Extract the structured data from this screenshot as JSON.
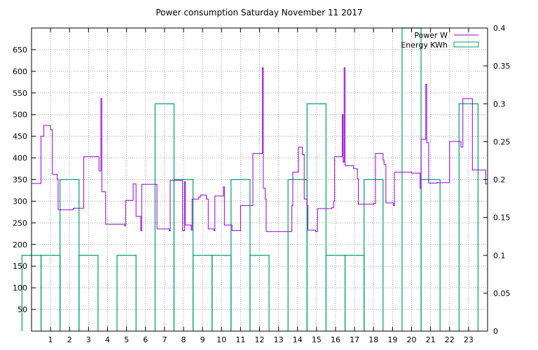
{
  "chart_data": {
    "type": "line",
    "title": "Power consumption Saturday November 11 2017",
    "x_ticks": [
      "1",
      "2",
      "3",
      "4",
      "5",
      "6",
      "7",
      "8",
      "9",
      "10",
      "11",
      "12",
      "13",
      "14",
      "15",
      "16",
      "17",
      "18",
      "19",
      "20",
      "21",
      "22",
      "23"
    ],
    "xlim": [
      0,
      24
    ],
    "y_left": {
      "lim": [
        0,
        700
      ],
      "ticks": [
        50,
        100,
        150,
        200,
        250,
        300,
        350,
        400,
        450,
        500,
        550,
        600,
        650
      ]
    },
    "y_right": {
      "lim": [
        0,
        0.4
      ],
      "ticks": [
        "0",
        "0.05",
        "0.1",
        "0.15",
        "0.2",
        "0.25",
        "0.3",
        "0.35",
        "0.4"
      ],
      "tick_values": [
        0,
        0.05,
        0.1,
        0.15,
        0.2,
        0.25,
        0.3,
        0.35,
        0.4
      ]
    },
    "grid": true,
    "legend": "top-right",
    "series": [
      {
        "name": "Power W",
        "axis": "left",
        "style": "step",
        "color": "#9400d3",
        "points": [
          [
            0,
            341
          ],
          [
            0.5,
            341
          ],
          [
            0.5,
            450
          ],
          [
            0.65,
            450
          ],
          [
            0.65,
            475
          ],
          [
            1.0,
            475
          ],
          [
            1.0,
            465
          ],
          [
            1.1,
            465
          ],
          [
            1.1,
            362
          ],
          [
            1.35,
            362
          ],
          [
            1.35,
            350
          ],
          [
            1.4,
            350
          ],
          [
            1.4,
            280
          ],
          [
            2.2,
            280
          ],
          [
            2.2,
            284
          ],
          [
            2.75,
            284
          ],
          [
            2.75,
            403
          ],
          [
            3.55,
            403
          ],
          [
            3.55,
            370
          ],
          [
            3.65,
            370
          ],
          [
            3.65,
            537
          ],
          [
            3.7,
            537
          ],
          [
            3.7,
            322
          ],
          [
            3.9,
            322
          ],
          [
            3.9,
            247
          ],
          [
            4.9,
            247
          ],
          [
            4.9,
            243
          ],
          [
            4.95,
            243
          ],
          [
            4.95,
            302
          ],
          [
            5.35,
            302
          ],
          [
            5.35,
            340
          ],
          [
            5.5,
            340
          ],
          [
            5.5,
            265
          ],
          [
            5.75,
            265
          ],
          [
            5.75,
            232
          ],
          [
            5.8,
            232
          ],
          [
            5.8,
            339
          ],
          [
            6.6,
            339
          ],
          [
            6.6,
            236
          ],
          [
            7.25,
            236
          ],
          [
            7.25,
            232
          ],
          [
            7.3,
            232
          ],
          [
            7.3,
            348
          ],
          [
            7.95,
            348
          ],
          [
            7.95,
            232
          ],
          [
            8.05,
            232
          ],
          [
            8.05,
            345
          ],
          [
            8.1,
            345
          ],
          [
            8.1,
            245
          ],
          [
            8.4,
            245
          ],
          [
            8.4,
            233
          ],
          [
            8.45,
            233
          ],
          [
            8.45,
            305
          ],
          [
            8.8,
            305
          ],
          [
            8.8,
            310
          ],
          [
            8.9,
            310
          ],
          [
            8.9,
            314
          ],
          [
            9.2,
            314
          ],
          [
            9.2,
            305
          ],
          [
            9.3,
            305
          ],
          [
            9.3,
            236
          ],
          [
            9.6,
            236
          ],
          [
            9.6,
            232
          ],
          [
            9.65,
            232
          ],
          [
            9.65,
            312
          ],
          [
            10.1,
            312
          ],
          [
            10.1,
            333
          ],
          [
            10.15,
            333
          ],
          [
            10.15,
            245
          ],
          [
            10.55,
            245
          ],
          [
            10.55,
            232
          ],
          [
            11.0,
            232
          ],
          [
            11.0,
            290
          ],
          [
            11.65,
            290
          ],
          [
            11.65,
            410
          ],
          [
            12.15,
            410
          ],
          [
            12.15,
            608
          ],
          [
            12.2,
            608
          ],
          [
            12.2,
            330
          ],
          [
            12.3,
            330
          ],
          [
            12.3,
            305
          ],
          [
            12.35,
            305
          ],
          [
            12.35,
            230
          ],
          [
            13.7,
            230
          ],
          [
            13.7,
            290
          ],
          [
            13.75,
            290
          ],
          [
            13.75,
            367
          ],
          [
            14.05,
            367
          ],
          [
            14.05,
            425
          ],
          [
            14.25,
            425
          ],
          [
            14.25,
            408
          ],
          [
            14.35,
            408
          ],
          [
            14.35,
            305
          ],
          [
            14.5,
            305
          ],
          [
            14.5,
            290
          ],
          [
            14.55,
            290
          ],
          [
            14.55,
            233
          ],
          [
            14.95,
            233
          ],
          [
            14.95,
            230
          ],
          [
            15.05,
            230
          ],
          [
            15.05,
            283
          ],
          [
            15.8,
            283
          ],
          [
            15.8,
            285
          ],
          [
            15.9,
            285
          ],
          [
            15.9,
            300
          ],
          [
            15.95,
            300
          ],
          [
            15.95,
            403
          ],
          [
            16.35,
            403
          ],
          [
            16.35,
            500
          ],
          [
            16.4,
            500
          ],
          [
            16.4,
            390
          ],
          [
            16.45,
            390
          ],
          [
            16.45,
            608
          ],
          [
            16.5,
            608
          ],
          [
            16.5,
            382
          ],
          [
            16.95,
            382
          ],
          [
            16.95,
            375
          ],
          [
            17.15,
            375
          ],
          [
            17.15,
            352
          ],
          [
            17.2,
            352
          ],
          [
            17.2,
            293
          ],
          [
            18.0,
            293
          ],
          [
            18.0,
            295
          ],
          [
            18.1,
            295
          ],
          [
            18.1,
            410
          ],
          [
            18.5,
            410
          ],
          [
            18.5,
            395
          ],
          [
            18.55,
            395
          ],
          [
            18.55,
            385
          ],
          [
            18.65,
            385
          ],
          [
            18.65,
            296
          ],
          [
            19.05,
            296
          ],
          [
            19.05,
            290
          ],
          [
            19.1,
            290
          ],
          [
            19.1,
            367
          ],
          [
            20.0,
            367
          ],
          [
            20.0,
            365
          ],
          [
            20.45,
            365
          ],
          [
            20.45,
            330
          ],
          [
            20.5,
            330
          ],
          [
            20.5,
            443
          ],
          [
            20.75,
            443
          ],
          [
            20.75,
            570
          ],
          [
            20.8,
            570
          ],
          [
            20.8,
            435
          ],
          [
            20.9,
            435
          ],
          [
            20.9,
            342
          ],
          [
            21.35,
            342
          ],
          [
            21.35,
            343
          ],
          [
            22.0,
            343
          ],
          [
            22.0,
            438
          ],
          [
            22.6,
            438
          ],
          [
            22.6,
            425
          ],
          [
            22.7,
            425
          ],
          [
            22.7,
            537
          ],
          [
            23.2,
            537
          ],
          [
            23.2,
            372
          ],
          [
            23.9,
            372
          ],
          [
            23.9,
            340
          ],
          [
            24,
            340
          ]
        ]
      },
      {
        "name": "Energy KWh",
        "axis": "right",
        "style": "impulse-box",
        "color": "#009e73",
        "bars": [
          [
            0,
            0.1
          ],
          [
            1,
            0.1
          ],
          [
            2,
            0.2
          ],
          [
            3,
            0.1
          ],
          [
            5,
            0.1
          ],
          [
            7,
            0.3
          ],
          [
            8,
            0.2
          ],
          [
            9,
            0.1
          ],
          [
            10,
            0.1
          ],
          [
            11,
            0.2
          ],
          [
            12,
            0.1
          ],
          [
            14,
            0.2
          ],
          [
            15,
            0.3
          ],
          [
            16,
            0.1
          ],
          [
            17,
            0.1
          ],
          [
            18,
            0.2
          ],
          [
            20,
            0.4
          ],
          [
            21,
            0.2
          ],
          [
            23,
            0.3
          ]
        ]
      }
    ]
  }
}
